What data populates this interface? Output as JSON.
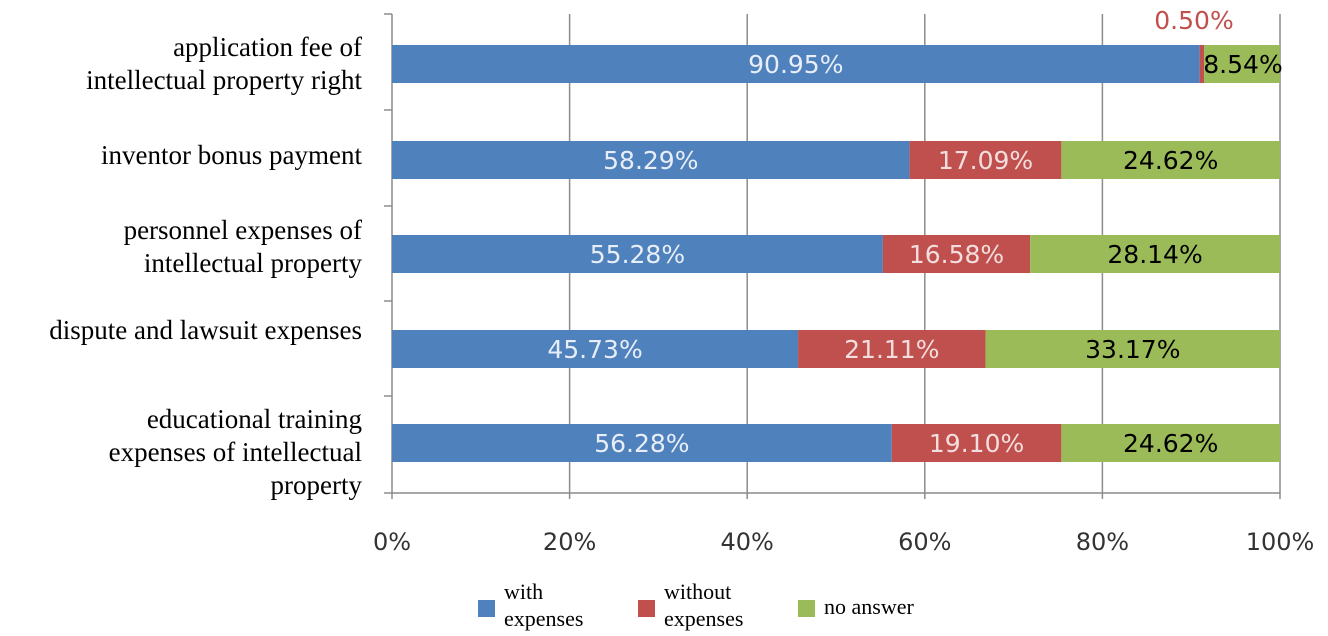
{
  "chart_data": {
    "type": "bar",
    "orientation": "horizontal",
    "stacked": true,
    "categories": [
      [
        "application fee of",
        "intellectual property right"
      ],
      [
        "inventor bonus payment"
      ],
      [
        "personnel expenses of",
        "intellectual property"
      ],
      [
        "dispute and lawsuit expenses"
      ],
      [
        "educational training",
        "expenses of intellectual",
        "property"
      ]
    ],
    "series": [
      {
        "name": "with expenses",
        "legend_lines": [
          "with",
          "expenses"
        ],
        "color": "#4f81bd",
        "values": [
          90.95,
          58.29,
          55.28,
          45.73,
          56.28
        ],
        "labels": [
          "90.95%",
          "58.29%",
          "55.28%",
          "45.73%",
          "56.28%"
        ]
      },
      {
        "name": "without expenses",
        "legend_lines": [
          "without",
          "expenses"
        ],
        "color": "#c0504d",
        "values": [
          0.5,
          17.09,
          16.58,
          21.11,
          19.1
        ],
        "labels": [
          "0.50%",
          "17.09%",
          "16.58%",
          "21.11%",
          "19.10%"
        ]
      },
      {
        "name": "no answer",
        "legend_lines": [
          "no answer"
        ],
        "color": "#9bbb59",
        "values": [
          8.54,
          24.62,
          28.14,
          33.17,
          24.62
        ],
        "labels": [
          "8.54%",
          "24.62%",
          "28.14%",
          "33.17%",
          "24.62%"
        ]
      }
    ],
    "xlim": [
      0,
      100
    ],
    "xticks": [
      "0%",
      "20%",
      "40%",
      "60%",
      "80%",
      "100%"
    ],
    "grid": true,
    "legend_position": "bottom"
  }
}
